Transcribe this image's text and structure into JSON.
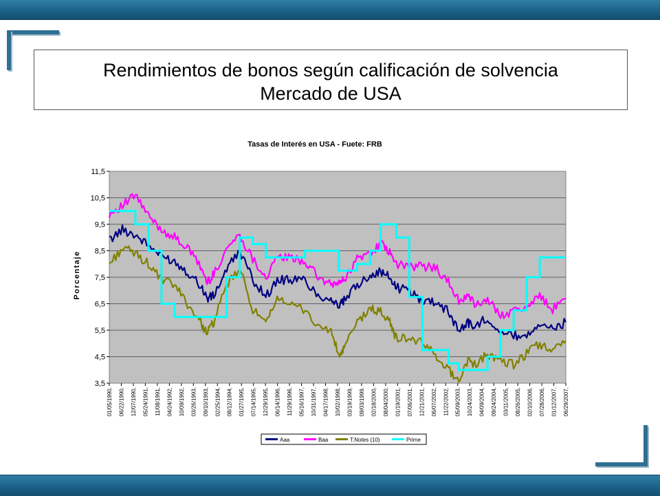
{
  "slide": {
    "title_line1": "Rendimientos de bonos según calificación de solvencia",
    "title_line2": "Mercado de USA"
  },
  "colors": {
    "band": "#1b5f84",
    "plot_bg": "#c0c0c0",
    "Aaa": "#000080",
    "Baa": "#ff00ff",
    "TNotes": "#808000",
    "Prime": "#00ffff"
  },
  "chart_data": {
    "type": "line",
    "title": "Tasas de Interés en USA - Fuete: FRB",
    "xlabel": "",
    "ylabel": "Porcentaje",
    "ylim": [
      3.5,
      11.5
    ],
    "yticks": [
      "3,5",
      "4,5",
      "5,5",
      "6,5",
      "7,5",
      "8,5",
      "9,5",
      "10,5",
      "11,5"
    ],
    "grid": true,
    "legend": "bottom",
    "x_tick_labels": [
      "01/05/1990,",
      "06/22/1990,",
      "12/07/1990,",
      "05/24/1991,",
      "11/08/1991,",
      "04/24/1992,",
      "10/09/1992,",
      "03/26/1993,",
      "09/10/1993,",
      "02/25/1994,",
      "08/12/1994,",
      "01/27/1995,",
      "07/14/1995,",
      "12/29/1995,",
      "06/14/1996,",
      "11/29/1996,",
      "05/16/1997,",
      "10/31/1997,",
      "04/17/1998,",
      "10/02/1998,",
      "03/19/1999,",
      "09/03/1999,",
      "02/18/2000,",
      "08/04/2000,",
      "01/19/2001,",
      "07/06/2001,",
      "12/21/2001,",
      "06/07/2002,",
      "11/22/2002,",
      "05/09/2003,",
      "10/24/2003,",
      "04/09/2004,",
      "09/24/2004,",
      "03/11/2005,",
      "08/26/2005,",
      "02/10/2006,",
      "07/28/2006,",
      "01/12/2007,",
      "06/29/2007,"
    ],
    "x": [
      1990.0,
      1990.5,
      1991.0,
      1991.5,
      1992.0,
      1992.5,
      1993.0,
      1993.5,
      1993.75,
      1994.0,
      1994.5,
      1995.0,
      1995.5,
      1996.0,
      1996.5,
      1997.0,
      1997.5,
      1998.0,
      1998.5,
      1998.8,
      1999.0,
      1999.5,
      2000.0,
      2000.4,
      2000.75,
      2001.0,
      2001.5,
      2002.0,
      2002.5,
      2003.0,
      2003.4,
      2003.75,
      2004.0,
      2004.5,
      2005.0,
      2005.5,
      2006.0,
      2006.5,
      2007.0,
      2007.5
    ],
    "series": [
      {
        "name": "Aaa",
        "values": [
          8.9,
          9.3,
          9.1,
          8.7,
          8.3,
          8.1,
          7.7,
          7.2,
          6.7,
          6.8,
          7.8,
          8.5,
          7.4,
          6.8,
          7.4,
          7.4,
          7.4,
          6.8,
          6.7,
          6.4,
          6.6,
          7.2,
          7.6,
          7.7,
          7.5,
          7.1,
          7.0,
          6.6,
          6.6,
          6.2,
          5.5,
          5.8,
          5.6,
          6.0,
          5.4,
          5.3,
          5.3,
          5.8,
          5.5,
          5.8
        ]
      },
      {
        "name": "Baa",
        "values": [
          9.9,
          10.2,
          10.6,
          9.8,
          9.3,
          9.0,
          8.6,
          7.9,
          7.3,
          7.6,
          8.6,
          9.1,
          8.2,
          7.5,
          8.3,
          8.2,
          8.1,
          7.5,
          7.2,
          7.3,
          7.4,
          8.2,
          8.4,
          8.8,
          8.4,
          8.0,
          7.9,
          7.9,
          7.9,
          7.3,
          6.6,
          6.8,
          6.5,
          6.6,
          6.1,
          6.2,
          6.4,
          6.8,
          6.3,
          6.7
        ]
      },
      {
        "name": "T.Notes (10)",
        "values": [
          8.0,
          8.6,
          8.4,
          8.0,
          7.4,
          7.2,
          6.5,
          5.8,
          5.4,
          5.8,
          7.2,
          7.8,
          6.3,
          5.7,
          6.8,
          6.4,
          6.3,
          5.6,
          5.5,
          4.5,
          4.8,
          5.8,
          6.3,
          6.2,
          5.8,
          5.2,
          5.2,
          5.0,
          4.6,
          4.0,
          3.6,
          4.4,
          4.2,
          4.6,
          4.3,
          4.2,
          4.6,
          5.0,
          4.7,
          5.1
        ]
      },
      {
        "name": "Prime",
        "values": [
          10.0,
          10.0,
          9.5,
          8.5,
          6.5,
          6.0,
          6.0,
          6.0,
          6.0,
          6.0,
          7.5,
          9.0,
          8.75,
          8.25,
          8.25,
          8.25,
          8.5,
          8.5,
          8.5,
          7.75,
          7.75,
          8.0,
          8.5,
          9.5,
          9.5,
          9.0,
          6.75,
          4.75,
          4.75,
          4.25,
          4.0,
          4.0,
          4.0,
          4.5,
          5.5,
          6.25,
          7.5,
          8.25,
          8.25,
          8.25
        ]
      }
    ]
  }
}
